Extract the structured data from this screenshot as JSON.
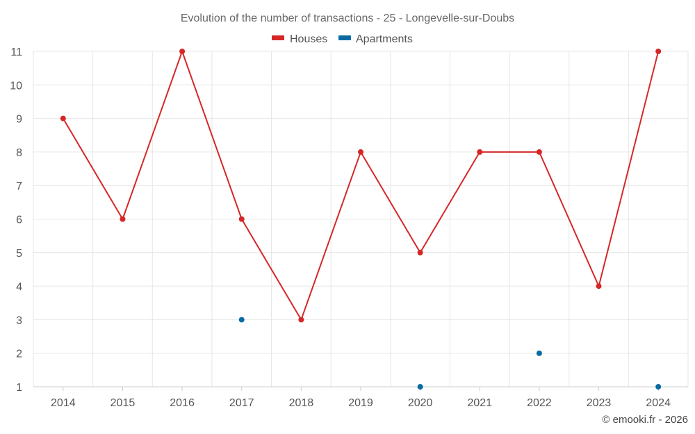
{
  "chart_data": {
    "type": "line",
    "title": "Evolution of the number of transactions - 25 - Longevelle-sur-Doubs",
    "categories": [
      "2014",
      "2015",
      "2016",
      "2017",
      "2018",
      "2019",
      "2020",
      "2021",
      "2022",
      "2023",
      "2024"
    ],
    "ylim": [
      1,
      11
    ],
    "yticks": [
      1,
      2,
      3,
      4,
      5,
      6,
      7,
      8,
      9,
      10,
      11
    ],
    "grid": true,
    "legend_position": "top-center",
    "series": [
      {
        "name": "Houses",
        "color": "#d62728",
        "mode": "line+markers",
        "values": [
          9,
          6,
          11,
          6,
          3,
          8,
          5,
          8,
          8,
          4,
          11
        ]
      },
      {
        "name": "Apartments",
        "color": "#0b6aa2",
        "mode": "markers",
        "values": [
          null,
          null,
          null,
          3,
          null,
          null,
          1,
          null,
          2,
          null,
          1
        ]
      }
    ]
  },
  "credit": "© emooki.fr - 2026"
}
